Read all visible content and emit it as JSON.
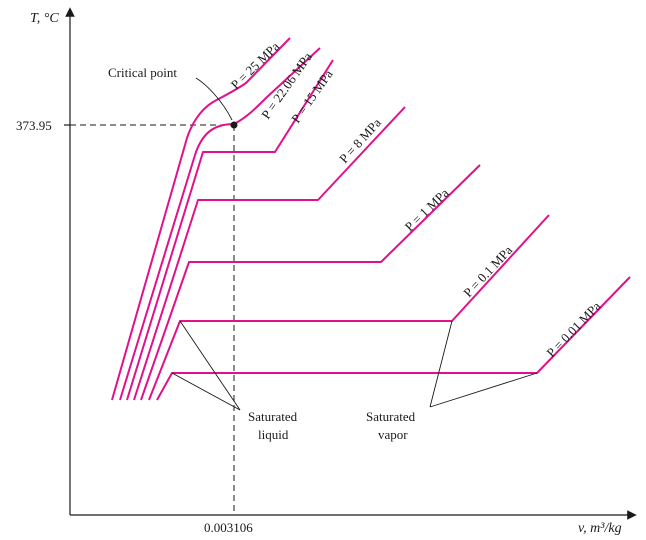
{
  "axes": {
    "y_label": "T, °C",
    "x_label": "v, m³/kg",
    "critical_temperature": "373.95",
    "critical_volume": "0.003106"
  },
  "annotations": {
    "critical_point": "Critical point",
    "saturated_liquid_line1": "Saturated",
    "saturated_liquid_line2": "liquid",
    "saturated_vapor_line1": "Saturated",
    "saturated_vapor_line2": "vapor"
  },
  "isobars": [
    {
      "label": "P = 25 MPa",
      "color": "#e0118a"
    },
    {
      "label": "P = 22.06 MPa",
      "color": "#e0118a"
    },
    {
      "label": "P = 15 MPa",
      "color": "#e0118a"
    },
    {
      "label": "P = 8 MPa",
      "color": "#e0118a"
    },
    {
      "label": "P = 1 MPa",
      "color": "#e0118a"
    },
    {
      "label": "P = 0.1 MPa",
      "color": "#e0118a"
    },
    {
      "label": "P = 0.01 MPa",
      "color": "#e0118a"
    }
  ],
  "colors": {
    "isobar": "#e0118a",
    "ink": "#1a1a1a"
  }
}
